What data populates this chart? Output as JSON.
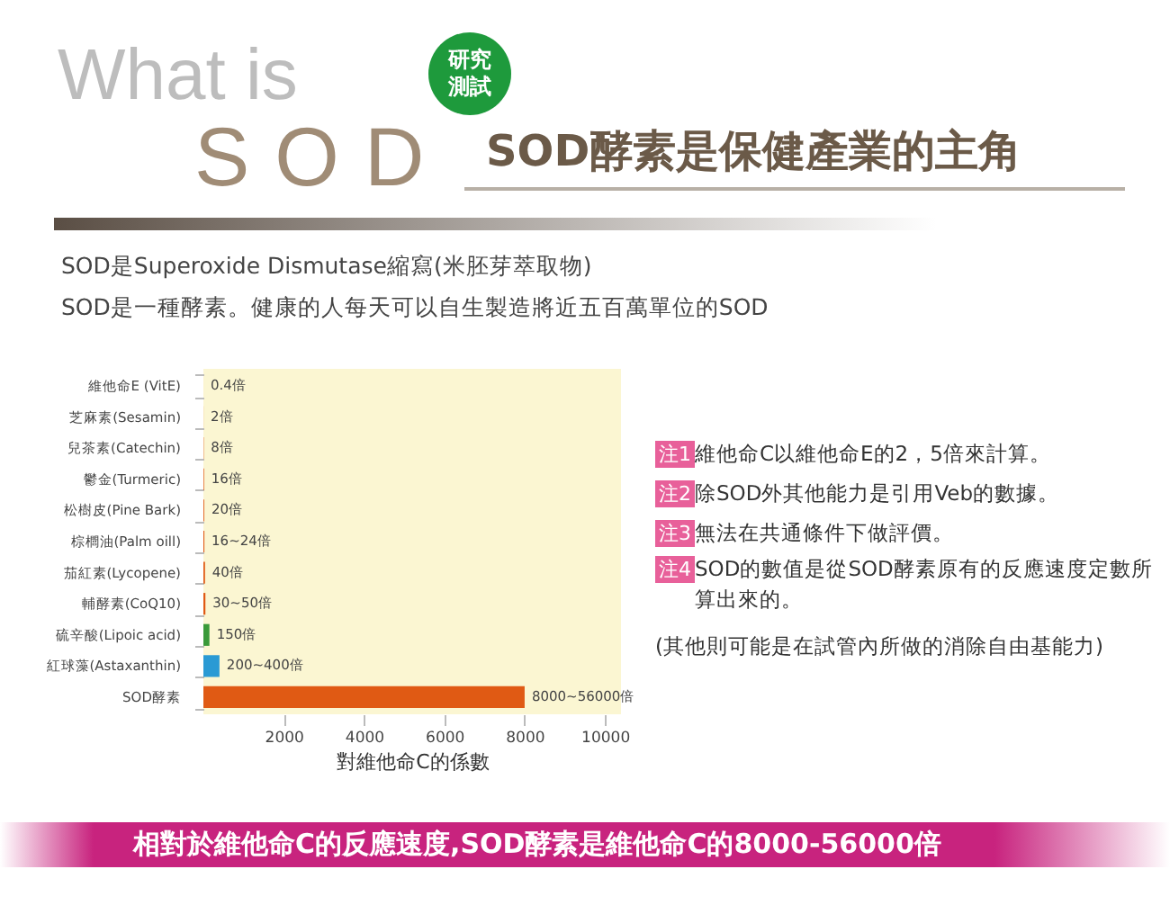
{
  "chart_data": {
    "type": "bar",
    "orientation": "horizontal",
    "title": "SOD酵素是保健產業的主角",
    "xlabel": "對維他命C的係數",
    "categories": [
      "維他命E (VitE)",
      "芝麻素(Sesamin)",
      "兒茶素(Catechin)",
      "鬱金(Turmeric)",
      "松樹皮(Pine Bark)",
      "棕櫚油(Palm oill)",
      "茄紅素(Lycopene)",
      "輔酵素(CoQ10)",
      "硫辛酸(Lipoic acid)",
      "紅球藻(Astaxanthin)",
      "SOD酵素"
    ],
    "values": [
      0.4,
      2,
      8,
      16,
      20,
      24,
      40,
      50,
      150,
      400,
      8000
    ],
    "value_labels": [
      "0.4倍",
      "2倍",
      "8倍",
      "16倍",
      "20倍",
      "16~24倍",
      "40倍",
      "30~50倍",
      "150倍",
      "200~400倍",
      "8000~56000倍"
    ],
    "colors": [
      "#e05a14",
      "#e05a14",
      "#e05a14",
      "#e05a14",
      "#e05a14",
      "#e05a14",
      "#e05a14",
      "#e05a14",
      "#3a9a3a",
      "#2a9ad4",
      "#e05a14"
    ],
    "xlim": [
      0,
      10400
    ],
    "xticks": [
      2000,
      4000,
      6000,
      8000,
      10000
    ],
    "grid": false,
    "annotations": [
      "What is",
      "SOD",
      "研究測試",
      "SOD是Superoxide Dismutase縮寫(米胚芽萃取物)",
      "SOD是一種酵素。健康的人每天可以自生製造將近五百萬單位的SOD",
      "注1維他命C以維他命E的2，5倍來計算。",
      "注2除SOD外其他能力是引用Veb的數據。",
      "注3無法在共通條件下做評價。",
      "注4SOD的數值是從SOD酵素原有的反應速度定數所算出來的。",
      "(其他則可能是在試管內所做的消除自由基能力)",
      "相對於維他命C的反應速度,SOD酵素是維他命C的8000-56000倍"
    ]
  }
}
